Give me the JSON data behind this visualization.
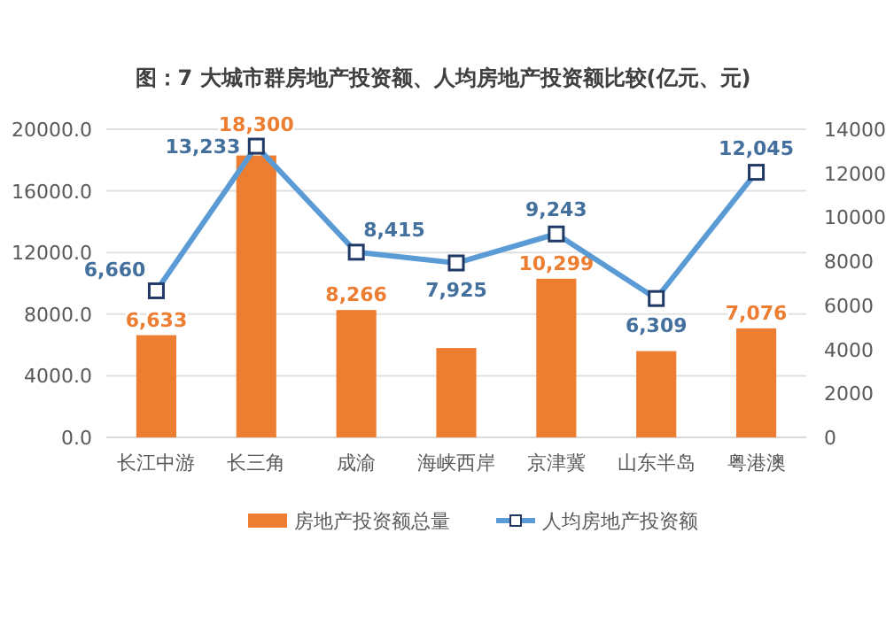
{
  "chart_data": {
    "type": "bar",
    "title": "图：7 大城市群房地产投资额、人均房地产投资额比较(亿元、元)",
    "categories": [
      "长江中游",
      "长三角",
      "成渝",
      "海峡西岸",
      "京津冀",
      "山东半岛",
      "粤港澳"
    ],
    "series": [
      {
        "name": "房地产投资额总量",
        "color": "#ed7d31",
        "values": [
          6633,
          18300,
          8266,
          5800,
          10299,
          5600,
          7076
        ],
        "value_labels": [
          "6,633",
          "18,300",
          "8,266",
          null,
          "10,299",
          null,
          "7,076"
        ]
      },
      {
        "name": "人均房地产投资额",
        "type": "line",
        "axis": "y2",
        "color": "#5b9bd5",
        "marker": "square",
        "values": [
          6660,
          13233,
          8415,
          7925,
          9243,
          6309,
          12045
        ],
        "value_labels": [
          "6,660",
          "13,233",
          "8,415",
          "7,925",
          "9,243",
          "6,309",
          "12,045"
        ]
      }
    ],
    "ylim": [
      0,
      20000
    ],
    "yticks": [
      {
        "value": 0,
        "label": "0.0"
      },
      {
        "value": 4000,
        "label": "4000.0"
      },
      {
        "value": 8000,
        "label": "8000.0"
      },
      {
        "value": 12000,
        "label": "12000.0"
      },
      {
        "value": 16000,
        "label": "16000.0"
      },
      {
        "value": 20000,
        "label": "20000.0"
      }
    ],
    "y2lim": [
      0,
      14000
    ],
    "y2ticks": [
      0,
      2000,
      4000,
      6000,
      8000,
      10000,
      12000,
      14000
    ],
    "grid": "y",
    "legend": "bottom"
  }
}
